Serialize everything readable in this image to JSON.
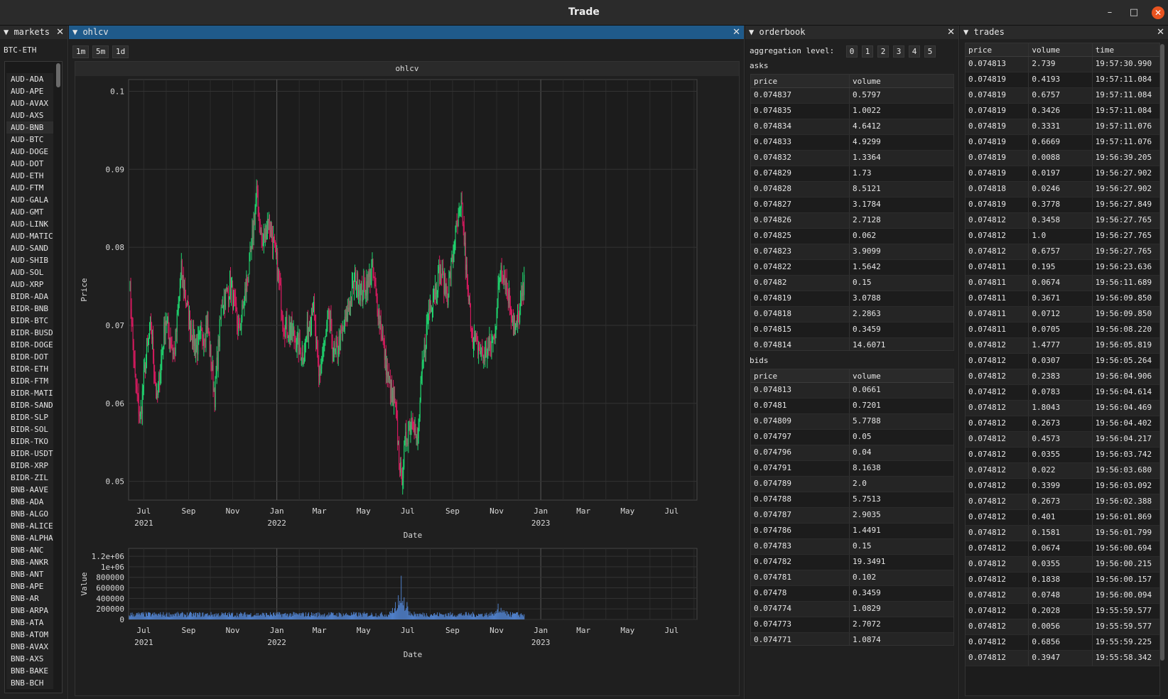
{
  "window": {
    "title": "Trade",
    "minimize_icon": "–",
    "maximize_icon": "□",
    "close_icon": "✕"
  },
  "markets": {
    "title": "markets",
    "selected": "BTC-ETH",
    "items": [
      "AUD-ADA",
      "AUD-APE",
      "AUD-AVAX",
      "AUD-AXS",
      "AUD-BNB",
      "AUD-BTC",
      "AUD-DOGE",
      "AUD-DOT",
      "AUD-ETH",
      "AUD-FTM",
      "AUD-GALA",
      "AUD-GMT",
      "AUD-LINK",
      "AUD-MATIC",
      "AUD-SAND",
      "AUD-SHIB",
      "AUD-SOL",
      "AUD-XRP",
      "BIDR-ADA",
      "BIDR-BNB",
      "BIDR-BTC",
      "BIDR-BUSD",
      "BIDR-DOGE",
      "BIDR-DOT",
      "BIDR-ETH",
      "BIDR-FTM",
      "BIDR-MATIC",
      "BIDR-SAND",
      "BIDR-SLP",
      "BIDR-SOL",
      "BIDR-TKO",
      "BIDR-USDT",
      "BIDR-XRP",
      "BIDR-ZIL",
      "BNB-AAVE",
      "BNB-ADA",
      "BNB-ALGO",
      "BNB-ALICE",
      "BNB-ALPHA",
      "BNB-ANC",
      "BNB-ANKR",
      "BNB-ANT",
      "BNB-APE",
      "BNB-AR",
      "BNB-ARPA",
      "BNB-ATA",
      "BNB-ATOM",
      "BNB-AVAX",
      "BNB-AXS",
      "BNB-BAKE",
      "BNB-BCH"
    ]
  },
  "ohlcv": {
    "title": "ohlcv",
    "timeframes": [
      "1m",
      "5m",
      "1d"
    ],
    "chart_title": "ohlcv"
  },
  "chart_data": [
    {
      "type": "candlestick",
      "title": "ohlcv",
      "xlabel": "Date",
      "ylabel": "Price",
      "yticks": [
        "0.1",
        "0.09",
        "0.08",
        "0.07",
        "0.06",
        "0.05"
      ],
      "ytick_values": [
        0.1,
        0.09,
        0.08,
        0.07,
        0.06,
        0.05
      ],
      "ylim": [
        0.0476,
        0.1015
      ],
      "xlim": [
        "2021-06-10",
        "2023-08-05"
      ],
      "xticks": [
        {
          "label": "Jul",
          "year": "2021",
          "date": "2021-07-01"
        },
        {
          "label": "Sep",
          "year": "",
          "date": "2021-09-01"
        },
        {
          "label": "Nov",
          "year": "",
          "date": "2021-11-01"
        },
        {
          "label": "Jan",
          "year": "2022",
          "date": "2022-01-01"
        },
        {
          "label": "Mar",
          "year": "",
          "date": "2022-03-01"
        },
        {
          "label": "May",
          "year": "",
          "date": "2022-05-01"
        },
        {
          "label": "Jul",
          "year": "",
          "date": "2022-07-01"
        },
        {
          "label": "Sep",
          "year": "",
          "date": "2022-09-01"
        },
        {
          "label": "Nov",
          "year": "",
          "date": "2022-11-01"
        },
        {
          "label": "Jan",
          "year": "2023",
          "date": "2023-01-01"
        },
        {
          "label": "Mar",
          "year": "",
          "date": "2023-03-01"
        },
        {
          "label": "May",
          "year": "",
          "date": "2023-05-01"
        },
        {
          "label": "Jul",
          "year": "",
          "date": "2023-07-01"
        }
      ],
      "start_date": "2021-06-11",
      "series_anchors": [
        [
          0,
          0.076
        ],
        [
          8,
          0.063
        ],
        [
          15,
          0.058
        ],
        [
          22,
          0.065
        ],
        [
          30,
          0.07
        ],
        [
          38,
          0.06
        ],
        [
          50,
          0.071
        ],
        [
          62,
          0.066
        ],
        [
          72,
          0.077
        ],
        [
          82,
          0.071
        ],
        [
          92,
          0.067
        ],
        [
          108,
          0.07
        ],
        [
          118,
          0.061
        ],
        [
          128,
          0.073
        ],
        [
          140,
          0.075
        ],
        [
          152,
          0.069
        ],
        [
          168,
          0.079
        ],
        [
          176,
          0.087
        ],
        [
          184,
          0.08
        ],
        [
          192,
          0.084
        ],
        [
          204,
          0.078
        ],
        [
          214,
          0.07
        ],
        [
          226,
          0.069
        ],
        [
          240,
          0.066
        ],
        [
          254,
          0.073
        ],
        [
          262,
          0.063
        ],
        [
          276,
          0.071
        ],
        [
          284,
          0.066
        ],
        [
          298,
          0.07
        ],
        [
          312,
          0.076
        ],
        [
          322,
          0.074
        ],
        [
          336,
          0.077
        ],
        [
          346,
          0.071
        ],
        [
          358,
          0.063
        ],
        [
          368,
          0.059
        ],
        [
          376,
          0.05
        ],
        [
          382,
          0.055
        ],
        [
          392,
          0.059
        ],
        [
          398,
          0.054
        ],
        [
          404,
          0.063
        ],
        [
          414,
          0.072
        ],
        [
          430,
          0.077
        ],
        [
          440,
          0.074
        ],
        [
          452,
          0.082
        ],
        [
          460,
          0.085
        ],
        [
          468,
          0.074
        ],
        [
          476,
          0.068
        ],
        [
          490,
          0.066
        ],
        [
          504,
          0.068
        ],
        [
          514,
          0.078
        ],
        [
          522,
          0.075
        ],
        [
          534,
          0.069
        ],
        [
          546,
          0.075
        ]
      ],
      "colors": {
        "up": "#1fd66f",
        "down": "#d81b60"
      }
    },
    {
      "type": "bar",
      "xlabel": "Date",
      "ylabel": "Value",
      "yticks": [
        "1.2e+06",
        "1e+06",
        "800000",
        "600000",
        "400000",
        "200000",
        "0"
      ],
      "ytick_values": [
        1200000,
        1000000,
        800000,
        600000,
        400000,
        200000,
        0
      ],
      "ylim": [
        0,
        1350000
      ],
      "spikes": [
        [
          376,
          830000
        ],
        [
          372,
          460000
        ],
        [
          380,
          420000
        ],
        [
          368,
          330000
        ],
        [
          384,
          330000
        ],
        [
          510,
          300000
        ],
        [
          514,
          220000
        ]
      ],
      "base_level": 110000,
      "color": "#4f7fc9"
    }
  ],
  "orderbook": {
    "title": "orderbook",
    "aggregation_label": "aggregation level:",
    "levels": [
      "0",
      "1",
      "2",
      "3",
      "4",
      "5"
    ],
    "asks_label": "asks",
    "bids_label": "bids",
    "columns": [
      "price",
      "volume"
    ],
    "asks": [
      [
        "0.074837",
        "0.5797"
      ],
      [
        "0.074835",
        "1.0022"
      ],
      [
        "0.074834",
        "4.6412"
      ],
      [
        "0.074833",
        "4.9299"
      ],
      [
        "0.074832",
        "1.3364"
      ],
      [
        "0.074829",
        "1.73"
      ],
      [
        "0.074828",
        "8.5121"
      ],
      [
        "0.074827",
        "3.1784"
      ],
      [
        "0.074826",
        "2.7128"
      ],
      [
        "0.074825",
        "0.062"
      ],
      [
        "0.074823",
        "3.9099"
      ],
      [
        "0.074822",
        "1.5642"
      ],
      [
        "0.07482",
        "0.15"
      ],
      [
        "0.074819",
        "3.0788"
      ],
      [
        "0.074818",
        "2.2863"
      ],
      [
        "0.074815",
        "0.3459"
      ],
      [
        "0.074814",
        "14.6071"
      ]
    ],
    "bids": [
      [
        "0.074813",
        "0.0661"
      ],
      [
        "0.07481",
        "0.7201"
      ],
      [
        "0.074809",
        "5.7788"
      ],
      [
        "0.074797",
        "0.05"
      ],
      [
        "0.074796",
        "0.04"
      ],
      [
        "0.074791",
        "8.1638"
      ],
      [
        "0.074789",
        "2.0"
      ],
      [
        "0.074788",
        "5.7513"
      ],
      [
        "0.074787",
        "2.9035"
      ],
      [
        "0.074786",
        "1.4491"
      ],
      [
        "0.074783",
        "0.15"
      ],
      [
        "0.074782",
        "19.3491"
      ],
      [
        "0.074781",
        "0.102"
      ],
      [
        "0.07478",
        "0.3459"
      ],
      [
        "0.074774",
        "1.0829"
      ],
      [
        "0.074773",
        "2.7072"
      ],
      [
        "0.074771",
        "1.0874"
      ]
    ]
  },
  "trades": {
    "title": "trades",
    "columns": [
      "price",
      "volume",
      "time"
    ],
    "rows": [
      [
        "0.074813",
        "2.739",
        "19:57:30.990"
      ],
      [
        "0.074819",
        "0.4193",
        "19:57:11.084"
      ],
      [
        "0.074819",
        "0.6757",
        "19:57:11.084"
      ],
      [
        "0.074819",
        "0.3426",
        "19:57:11.084"
      ],
      [
        "0.074819",
        "0.3331",
        "19:57:11.076"
      ],
      [
        "0.074819",
        "0.6669",
        "19:57:11.076"
      ],
      [
        "0.074819",
        "0.0088",
        "19:56:39.205"
      ],
      [
        "0.074819",
        "0.0197",
        "19:56:27.902"
      ],
      [
        "0.074818",
        "0.0246",
        "19:56:27.902"
      ],
      [
        "0.074819",
        "0.3778",
        "19:56:27.849"
      ],
      [
        "0.074812",
        "0.3458",
        "19:56:27.765"
      ],
      [
        "0.074812",
        "1.0",
        "19:56:27.765"
      ],
      [
        "0.074812",
        "0.6757",
        "19:56:27.765"
      ],
      [
        "0.074811",
        "0.195",
        "19:56:23.636"
      ],
      [
        "0.074811",
        "0.0674",
        "19:56:11.689"
      ],
      [
        "0.074811",
        "0.3671",
        "19:56:09.850"
      ],
      [
        "0.074811",
        "0.0712",
        "19:56:09.850"
      ],
      [
        "0.074811",
        "0.0705",
        "19:56:08.220"
      ],
      [
        "0.074812",
        "1.4777",
        "19:56:05.819"
      ],
      [
        "0.074812",
        "0.0307",
        "19:56:05.264"
      ],
      [
        "0.074812",
        "0.2383",
        "19:56:04.906"
      ],
      [
        "0.074812",
        "0.0783",
        "19:56:04.614"
      ],
      [
        "0.074812",
        "1.8043",
        "19:56:04.469"
      ],
      [
        "0.074812",
        "0.2673",
        "19:56:04.402"
      ],
      [
        "0.074812",
        "0.4573",
        "19:56:04.217"
      ],
      [
        "0.074812",
        "0.0355",
        "19:56:03.742"
      ],
      [
        "0.074812",
        "0.022",
        "19:56:03.680"
      ],
      [
        "0.074812",
        "0.3399",
        "19:56:03.092"
      ],
      [
        "0.074812",
        "0.2673",
        "19:56:02.388"
      ],
      [
        "0.074812",
        "0.401",
        "19:56:01.869"
      ],
      [
        "0.074812",
        "0.1581",
        "19:56:01.799"
      ],
      [
        "0.074812",
        "0.0674",
        "19:56:00.694"
      ],
      [
        "0.074812",
        "0.0355",
        "19:56:00.215"
      ],
      [
        "0.074812",
        "0.1838",
        "19:56:00.157"
      ],
      [
        "0.074812",
        "0.0748",
        "19:56:00.094"
      ],
      [
        "0.074812",
        "0.2028",
        "19:55:59.577"
      ],
      [
        "0.074812",
        "0.0056",
        "19:55:59.577"
      ],
      [
        "0.074812",
        "0.6856",
        "19:55:59.225"
      ],
      [
        "0.074812",
        "0.3947",
        "19:55:58.342"
      ]
    ]
  }
}
